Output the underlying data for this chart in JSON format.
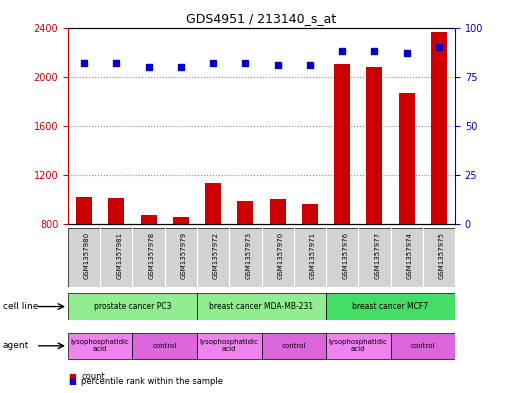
{
  "title": "GDS4951 / 213140_s_at",
  "samples": [
    "GSM1357980",
    "GSM1357981",
    "GSM1357978",
    "GSM1357979",
    "GSM1357972",
    "GSM1357973",
    "GSM1357970",
    "GSM1357971",
    "GSM1357976",
    "GSM1357977",
    "GSM1357974",
    "GSM1357975"
  ],
  "counts": [
    1020,
    1010,
    870,
    860,
    1130,
    990,
    1000,
    960,
    2100,
    2080,
    1870,
    2360
  ],
  "percentiles": [
    82,
    82,
    80,
    80,
    82,
    82,
    81,
    81,
    88,
    88,
    87,
    90
  ],
  "ylim_left": [
    800,
    2400
  ],
  "ylim_right": [
    0,
    100
  ],
  "yticks_left": [
    800,
    1200,
    1600,
    2000,
    2400
  ],
  "yticks_right": [
    0,
    25,
    50,
    75,
    100
  ],
  "cell_lines": [
    {
      "label": "prostate cancer PC3",
      "start": 0,
      "end": 4,
      "color": "#90EE90"
    },
    {
      "label": "breast cancer MDA-MB-231",
      "start": 4,
      "end": 8,
      "color": "#90EE90"
    },
    {
      "label": "breast cancer MCF7",
      "start": 8,
      "end": 12,
      "color": "#44DD66"
    }
  ],
  "agents": [
    {
      "label": "lysophosphatidic\nacid",
      "start": 0,
      "end": 2,
      "color": "#EE82EE"
    },
    {
      "label": "control",
      "start": 2,
      "end": 4,
      "color": "#DD66DD"
    },
    {
      "label": "lysophosphatidic\nacid",
      "start": 4,
      "end": 6,
      "color": "#EE82EE"
    },
    {
      "label": "control",
      "start": 6,
      "end": 8,
      "color": "#DD66DD"
    },
    {
      "label": "lysophosphatidic\nacid",
      "start": 8,
      "end": 10,
      "color": "#EE82EE"
    },
    {
      "label": "control",
      "start": 10,
      "end": 12,
      "color": "#DD66DD"
    }
  ],
  "bar_color": "#CC0000",
  "dot_color": "#0000CC",
  "left_axis_color": "#CC0000",
  "right_axis_color": "#0000CC",
  "background_color": "#ffffff",
  "grid_color": "#888888",
  "label_bg_color": "#D3D3D3"
}
